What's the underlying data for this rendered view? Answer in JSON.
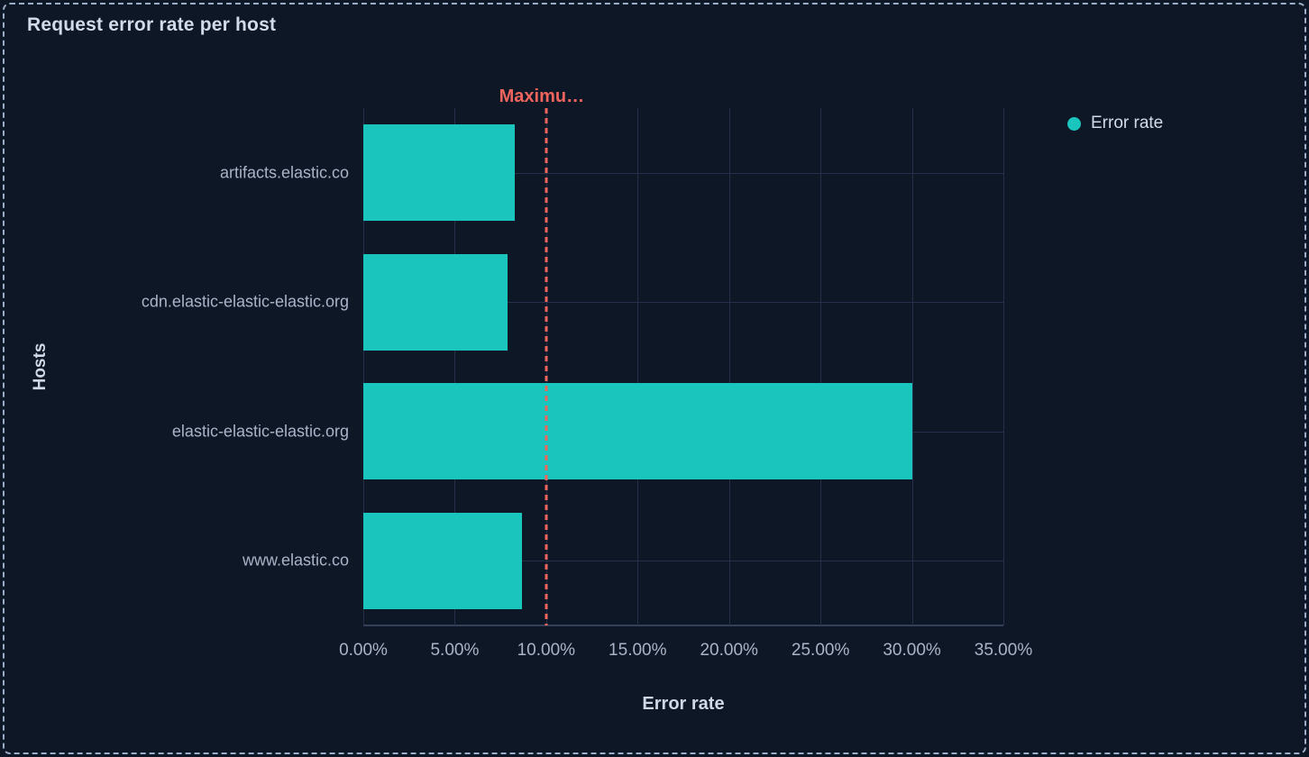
{
  "panel": {
    "title": "Request error rate per host"
  },
  "legend": {
    "items": [
      {
        "label": "Error rate",
        "color": "#1ac5be"
      }
    ]
  },
  "colors": {
    "bar": "#1ac5be",
    "annotation": "#ef655d",
    "background": "#0e1726",
    "gridline": "#25304a",
    "border": "#9badc8",
    "title_text": "#d2dbe9",
    "axis_text": "#a9b4c8"
  },
  "chart_data": {
    "type": "bar",
    "orientation": "horizontal",
    "title": "Request error rate per host",
    "xlabel": "Error rate",
    "ylabel": "Hosts",
    "categories": [
      "artifacts.elastic.co",
      "cdn.elastic-elastic-elastic.org",
      "elastic-elastic-elastic.org",
      "www.elastic.co"
    ],
    "series": [
      {
        "name": "Error rate",
        "values": [
          8.3,
          7.9,
          30.0,
          8.7
        ]
      }
    ],
    "value_unit": "%",
    "xlim": [
      0,
      35
    ],
    "x_tick_values": [
      0,
      5,
      10,
      15,
      20,
      25,
      30,
      35
    ],
    "x_tick_labels": [
      "0.00%",
      "5.00%",
      "10.00%",
      "15.00%",
      "20.00%",
      "25.00%",
      "30.00%",
      "35.00%"
    ],
    "grid": true,
    "legend_position": "top-right",
    "annotation": {
      "label": "Maximu…",
      "value": 10,
      "style": "dashed",
      "color": "#ef655d"
    }
  }
}
